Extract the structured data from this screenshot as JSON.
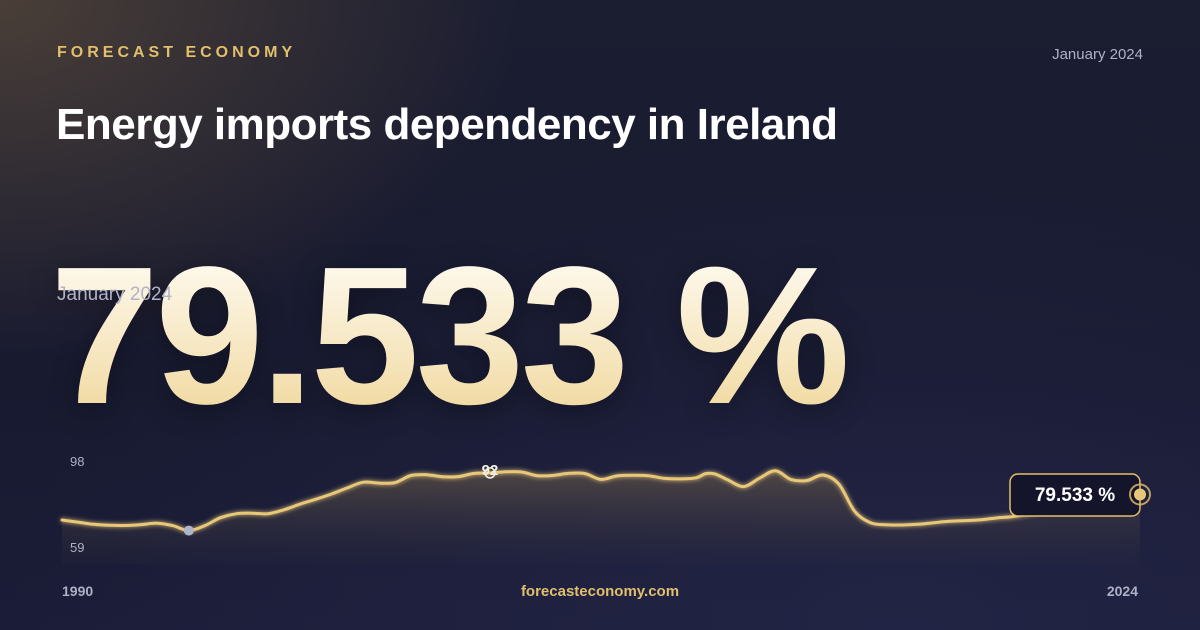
{
  "header": {
    "brand": "FORECAST ECONOMY",
    "date": "January 2024",
    "title": "Energy imports dependency in Ireland"
  },
  "headline": {
    "value": "79.533 %",
    "date": "January 2024"
  },
  "footer": {
    "url": "forecasteconomy.com"
  },
  "colors": {
    "accent": "#e2bf6c",
    "line": "#e8c878",
    "axis_text": "#aeb0c6",
    "min_marker": "#aeb4cc"
  },
  "chart_data": {
    "type": "line",
    "title": "",
    "xlabel": "",
    "ylabel": "",
    "x_labels": [
      "1990",
      "2024"
    ],
    "y_labels": [
      "98",
      "59"
    ],
    "ylim": [
      59,
      98
    ],
    "xlim": [
      1990,
      2024
    ],
    "min_label": "59",
    "max_label": "92",
    "last_label": "79.533 %",
    "grid": false,
    "series": [
      {
        "x": [
          1990.0,
          1990.5,
          1991.0,
          1991.5,
          1992.0,
          1992.5,
          1993.0,
          1993.5,
          1994.0,
          1994.5,
          1995.0,
          1995.5,
          1996.0,
          1996.5,
          1997.0,
          1997.5,
          1998.0,
          1998.5,
          1999.0,
          1999.5,
          2000.0,
          2000.5,
          2001.0,
          2001.5,
          2002.0,
          2002.5,
          2003.0,
          2003.5,
          2004.0,
          2004.5,
          2005.0,
          2005.5,
          2006.0,
          2006.5,
          2007.0,
          2007.5,
          2008.0,
          2008.5,
          2009.0,
          2009.5,
          2010.0,
          2010.3,
          2010.6,
          2011.0,
          2011.5,
          2012.0,
          2012.5,
          2013.0,
          2013.5,
          2014.0,
          2014.5,
          2015.0,
          2015.5,
          2016.0,
          2016.5,
          2017.0,
          2017.5,
          2018.0,
          2018.5,
          2019.0,
          2019.5,
          2020.0,
          2020.5,
          2021.0,
          2021.5,
          2022.0,
          2022.5,
          2023.0,
          2023.5,
          2024.0
        ],
        "y": [
          65.0,
          63.8,
          62.6,
          62.0,
          61.9,
          62.4,
          63.2,
          61.8,
          59.0,
          61.8,
          66.3,
          68.6,
          68.9,
          68.6,
          70.8,
          74.0,
          76.8,
          79.8,
          83.3,
          86.5,
          86.0,
          86.3,
          90.3,
          90.8,
          89.6,
          89.7,
          91.5,
          91.8,
          92.4,
          92.3,
          90.2,
          90.4,
          91.6,
          91.4,
          88.1,
          90.1,
          90.5,
          90.2,
          88.7,
          88.4,
          89.0,
          91.4,
          91.2,
          87.8,
          84.0,
          88.8,
          93.0,
          88.0,
          87.5,
          90.6,
          85.5,
          70.0,
          63.5,
          62.3,
          62.2,
          62.6,
          63.5,
          64.3,
          64.7,
          65.2,
          66.2,
          67.0,
          68.6,
          70.6,
          72.4,
          74.4,
          75.9,
          77.3,
          78.5,
          79.533
        ]
      }
    ]
  }
}
